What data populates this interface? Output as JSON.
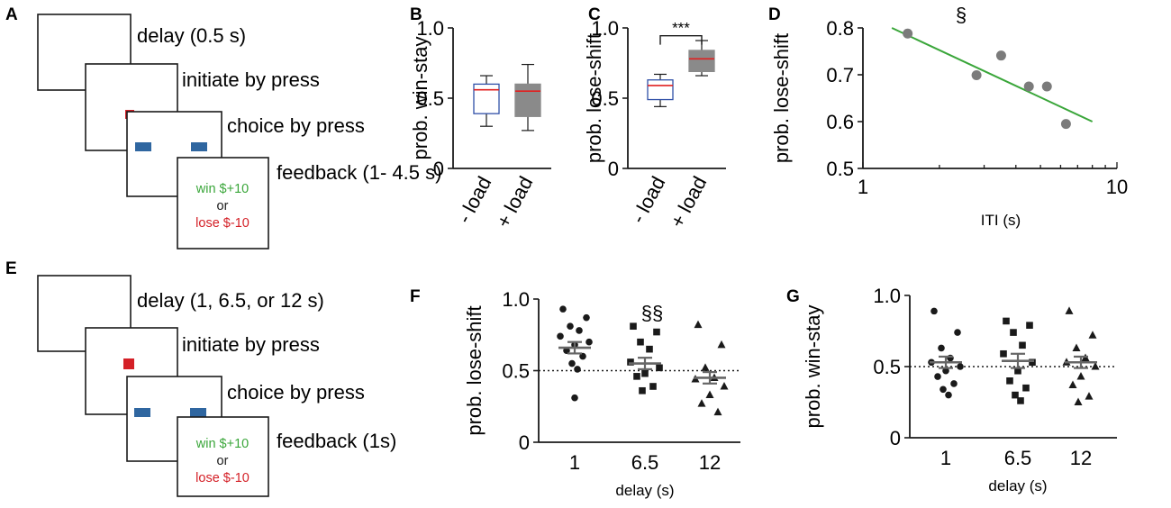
{
  "figure": {
    "panel_labels": [
      "A",
      "B",
      "C",
      "D",
      "E",
      "F",
      "G"
    ],
    "colors": {
      "ink": "#1a1a1a",
      "red": "#d42027",
      "blue": "#2f66a0",
      "green": "#3aa63a",
      "grey": "#8a8a8a",
      "box_outline": "#3050a8",
      "median_red": "#e02020"
    }
  },
  "task_a": {
    "steps": [
      "delay (0.5 s)",
      "initiate by press",
      "choice by press",
      "feedback (1- 4.5 s)"
    ],
    "win": "win $+10",
    "or": "or",
    "lose": "lose $-10"
  },
  "task_e": {
    "steps": [
      "delay (1, 6.5, or 12 s)",
      "initiate by press",
      "choice by press",
      "feedback (1s)"
    ],
    "win": "win $+10",
    "or": "or",
    "lose": "lose $-10"
  },
  "chart_data": [
    {
      "panel": "B",
      "type": "box",
      "ylabel": "prob. win-stay",
      "ylim": [
        0,
        1.0
      ],
      "yticks": [
        0,
        0.5,
        1.0
      ],
      "ytick_labels": [
        "0",
        "0.5",
        "1.0"
      ],
      "categories": [
        "- load",
        "+ load"
      ],
      "boxes": [
        {
          "min": 0.3,
          "q1": 0.39,
          "median": 0.56,
          "q3": 0.6,
          "max": 0.66,
          "style": "open"
        },
        {
          "min": 0.27,
          "q1": 0.37,
          "median": 0.55,
          "q3": 0.6,
          "max": 0.74,
          "style": "filled"
        }
      ]
    },
    {
      "panel": "C",
      "type": "box",
      "ylabel": "prob. lose-shift",
      "ylim": [
        0,
        1.0
      ],
      "yticks": [
        0,
        0.5,
        1.0
      ],
      "ytick_labels": [
        "0",
        "0.5",
        "1.0"
      ],
      "categories": [
        "- load",
        "+ load"
      ],
      "boxes": [
        {
          "min": 0.44,
          "q1": 0.49,
          "median": 0.59,
          "q3": 0.63,
          "max": 0.67,
          "style": "open"
        },
        {
          "min": 0.66,
          "q1": 0.69,
          "median": 0.78,
          "q3": 0.84,
          "max": 0.91,
          "style": "filled"
        }
      ],
      "significance": "***"
    },
    {
      "panel": "D",
      "type": "scatter",
      "xlabel": "ITI (s)",
      "ylabel": "prob. lose-shift",
      "xscale": "log",
      "xlim": [
        1,
        10
      ],
      "ylim": [
        0.5,
        0.8
      ],
      "xticks": [
        1,
        10
      ],
      "xtick_labels": [
        "1",
        "10"
      ],
      "yticks": [
        0.5,
        0.6,
        0.7,
        0.8
      ],
      "ytick_labels": [
        "0.5",
        "0.6",
        "0.7",
        "0.8"
      ],
      "points": [
        {
          "x": 1.5,
          "y": 0.788
        },
        {
          "x": 2.8,
          "y": 0.699
        },
        {
          "x": 3.5,
          "y": 0.741
        },
        {
          "x": 4.5,
          "y": 0.675
        },
        {
          "x": 5.3,
          "y": 0.675
        },
        {
          "x": 6.3,
          "y": 0.595
        }
      ],
      "fit": [
        {
          "x": 1.3,
          "y": 0.8
        },
        {
          "x": 8.0,
          "y": 0.6
        }
      ],
      "annotation": "§"
    },
    {
      "panel": "F",
      "type": "scatter_mean_sem",
      "xlabel": "delay (s)",
      "ylabel": "prob. lose-shift",
      "ylim": [
        0,
        1.0
      ],
      "yticks": [
        0,
        0.5,
        1.0
      ],
      "ytick_labels": [
        "0",
        "0.5",
        "1.0"
      ],
      "categories": [
        "1",
        "6.5",
        "12"
      ],
      "reference_line": 0.5,
      "annotation": "§§",
      "groups": [
        {
          "marker": "circle",
          "mean": 0.66,
          "sem": 0.04,
          "values": [
            0.93,
            0.87,
            0.81,
            0.78,
            0.74,
            0.7,
            0.68,
            0.64,
            0.6,
            0.55,
            0.51,
            0.31
          ]
        },
        {
          "marker": "square",
          "mean": 0.55,
          "sem": 0.04,
          "values": [
            0.81,
            0.77,
            0.7,
            0.65,
            0.56,
            0.52,
            0.48,
            0.46,
            0.39,
            0.36
          ]
        },
        {
          "marker": "triangle",
          "mean": 0.45,
          "sem": 0.04,
          "values": [
            0.82,
            0.68,
            0.52,
            0.45,
            0.44,
            0.39,
            0.33,
            0.27,
            0.21
          ]
        }
      ]
    },
    {
      "panel": "G",
      "type": "scatter_mean_sem",
      "xlabel": "delay (s)",
      "ylabel": "prob. win-stay",
      "ylim": [
        0,
        1.0
      ],
      "yticks": [
        0,
        0.5,
        1.0
      ],
      "ytick_labels": [
        "0",
        "0.5",
        "1.0"
      ],
      "categories": [
        "1",
        "6.5",
        "12"
      ],
      "reference_line": 0.5,
      "groups": [
        {
          "marker": "circle",
          "mean": 0.53,
          "sem": 0.04,
          "values": [
            0.89,
            0.74,
            0.63,
            0.56,
            0.53,
            0.5,
            0.47,
            0.43,
            0.38,
            0.34,
            0.3
          ]
        },
        {
          "marker": "square",
          "mean": 0.54,
          "sem": 0.05,
          "values": [
            0.82,
            0.79,
            0.74,
            0.65,
            0.59,
            0.53,
            0.47,
            0.4,
            0.35,
            0.3,
            0.26
          ]
        },
        {
          "marker": "triangle",
          "mean": 0.53,
          "sem": 0.04,
          "values": [
            0.89,
            0.72,
            0.63,
            0.56,
            0.53,
            0.5,
            0.43,
            0.37,
            0.29,
            0.25
          ]
        }
      ]
    }
  ]
}
